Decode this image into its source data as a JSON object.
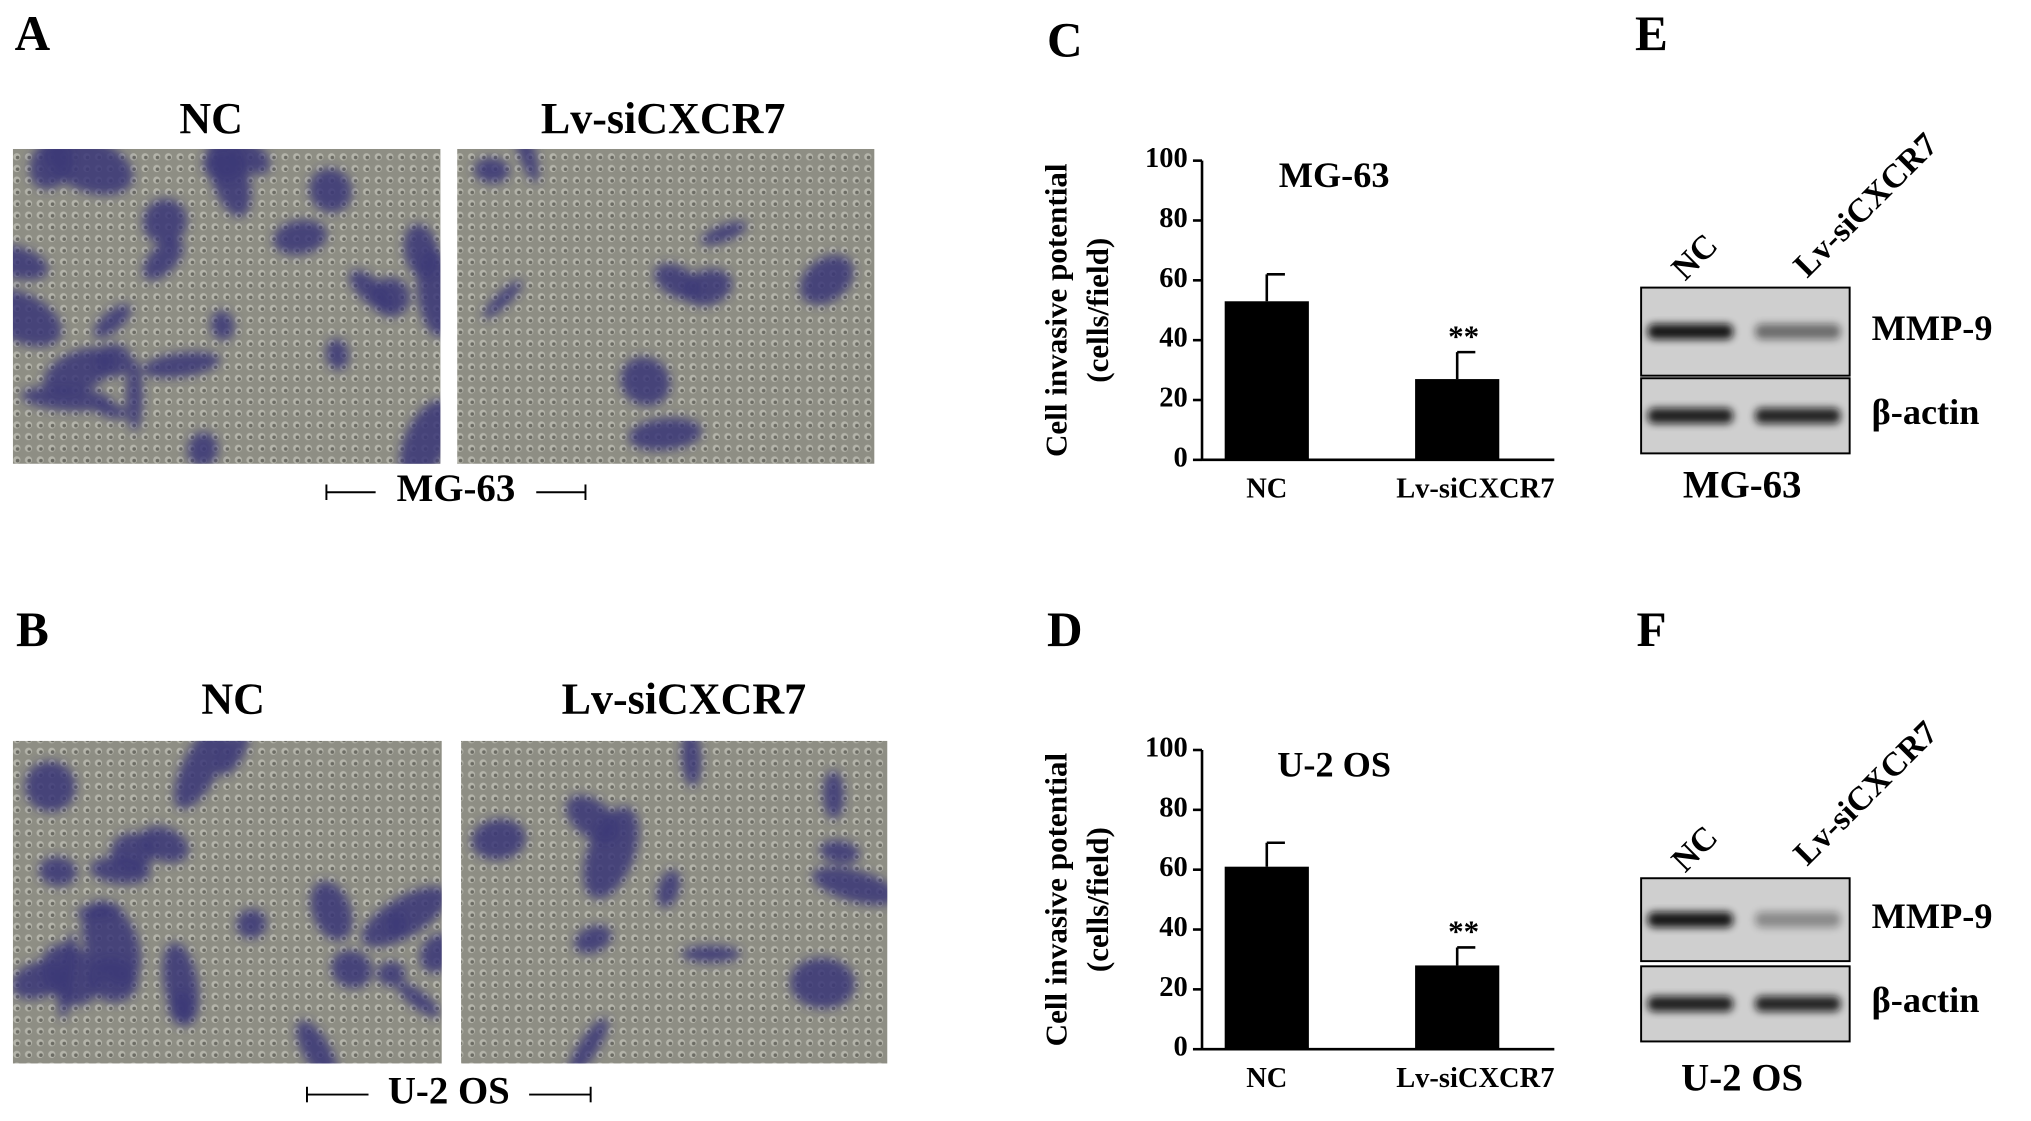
{
  "panel_labels": [
    "A",
    "B",
    "C",
    "D",
    "E",
    "F"
  ],
  "micrographs": [
    {
      "conditions": [
        "NC",
        "Lv-siCXCR7"
      ],
      "cell_line": "MG-63"
    },
    {
      "conditions": [
        "NC",
        "Lv-siCXCR7"
      ],
      "cell_line": "U-2 OS"
    }
  ],
  "chart_data": [
    {
      "type": "bar",
      "title": "MG-63",
      "ylabel": [
        "Cell invasive potential",
        "(cells/field)"
      ],
      "categories": [
        "NC",
        "Lv-siCXCR7"
      ],
      "values": [
        53,
        27
      ],
      "errors": [
        9,
        9
      ],
      "value_annotations": [
        null,
        "**"
      ],
      "color": "#000000",
      "ylim": [
        0,
        100
      ],
      "yticks": [
        0,
        20,
        40,
        60,
        80,
        100
      ]
    },
    {
      "type": "bar",
      "title": "U-2 OS",
      "ylabel": [
        "Cell invasive potential",
        "(cells/field)"
      ],
      "categories": [
        "NC",
        "Lv-siCXCR7"
      ],
      "values": [
        61,
        28
      ],
      "errors": [
        8,
        6
      ],
      "value_annotations": [
        null,
        "**"
      ],
      "color": "#000000",
      "ylim": [
        0,
        100
      ],
      "yticks": [
        0,
        20,
        40,
        60,
        80,
        100
      ]
    }
  ],
  "blots": [
    {
      "lanes": [
        "NC",
        "Lv-siCXCR7"
      ],
      "bands": [
        "MMP-9",
        "β-actin"
      ],
      "cell_line": "MG-63"
    },
    {
      "lanes": [
        "NC",
        "Lv-siCXCR7"
      ],
      "bands": [
        "MMP-9",
        "β-actin"
      ],
      "cell_line": "U-2 OS"
    }
  ]
}
